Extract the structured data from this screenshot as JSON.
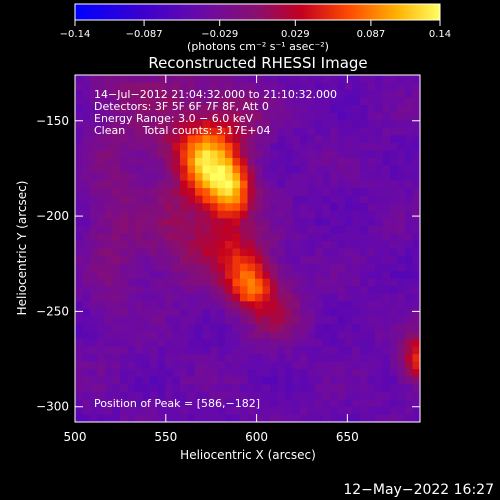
{
  "chart_data": {
    "type": "heatmap",
    "title": "Reconstructed RHESSI Image",
    "xlabel": "Heliocentric X (arcsec)",
    "ylabel": "Heliocentric Y (arcsec)",
    "xlim": [
      500,
      690
    ],
    "ylim": [
      -308,
      -126
    ],
    "x_ticks": [
      {
        "value": 500,
        "label": "500"
      },
      {
        "value": 550,
        "label": "550"
      },
      {
        "value": 600,
        "label": "600"
      },
      {
        "value": 650,
        "label": "650"
      }
    ],
    "y_ticks": [
      {
        "value": -150,
        "label": "−150"
      },
      {
        "value": -200,
        "label": "−200"
      },
      {
        "value": -250,
        "label": "−250"
      },
      {
        "value": -300,
        "label": "−300"
      }
    ],
    "colorbar": {
      "min": -0.14,
      "max": 0.14,
      "units": "(photons cm⁻² s⁻¹ asec⁻²)",
      "ticks": [
        {
          "value": -0.14,
          "label": "−0.14"
        },
        {
          "value": -0.087,
          "label": "−0.087"
        },
        {
          "value": -0.029,
          "label": "−0.029"
        },
        {
          "value": 0.029,
          "label": "0.029"
        },
        {
          "value": 0.087,
          "label": "0.087"
        },
        {
          "value": 0.14,
          "label": "0.14"
        }
      ]
    },
    "annotations": [
      "14−Jul−2012 21:04:32.000 to 21:10:32.000",
      "Detectors: 3F 5F 6F 7F 8F, Att 0",
      "Energy Range: 3.0 − 6.0 keV",
      "Clean     Total counts: 3.17E+04"
    ],
    "peak_label": "Position of Peak = [586,−182]",
    "peak_position": [
      586,
      -182
    ],
    "sources": [
      {
        "x": 571,
        "y": -172,
        "sx": 10,
        "sy": 13,
        "amp": 0.12
      },
      {
        "x": 586,
        "y": -186,
        "sx": 9,
        "sy": 12,
        "amp": 0.14
      },
      {
        "x": 596,
        "y": -236,
        "sx": 10,
        "sy": 9,
        "amp": 0.115
      },
      {
        "x": 588,
        "y": -218,
        "sx": 14,
        "sy": 9,
        "amp": 0.06
      },
      {
        "x": 560,
        "y": -205,
        "sx": 18,
        "sy": 22,
        "amp": 0.045
      },
      {
        "x": 555,
        "y": -160,
        "sx": 20,
        "sy": 10,
        "amp": 0.04
      },
      {
        "x": 610,
        "y": -250,
        "sx": 12,
        "sy": 12,
        "amp": 0.045
      },
      {
        "x": 588,
        "y": -150,
        "sx": 12,
        "sy": 12,
        "amp": 0.05
      },
      {
        "x": 545,
        "y": -135,
        "sx": 25,
        "sy": 10,
        "amp": 0.035
      },
      {
        "x": 520,
        "y": -205,
        "sx": 10,
        "sy": 40,
        "amp": 0.03
      },
      {
        "x": 690,
        "y": -275,
        "sx": 7,
        "sy": 9,
        "amp": 0.11
      }
    ],
    "background": -0.045
  },
  "footer": {
    "timestamp": "12−May−2022 16:27"
  }
}
